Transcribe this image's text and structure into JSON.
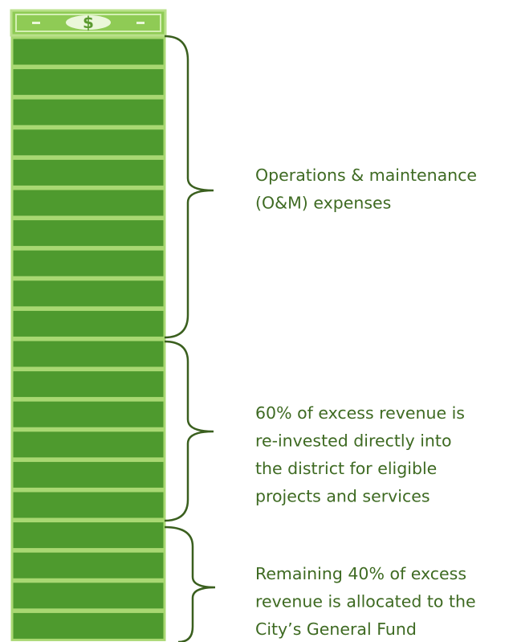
{
  "bill_symbol": "$",
  "segments": [
    {
      "lines": [
        "Operations & maintenance",
        "(O&M) expenses"
      ]
    },
    {
      "lines": [
        "60% of excess revenue is",
        "re-invested directly into",
        "the district for eligible",
        "projects and services"
      ]
    },
    {
      "lines": [
        "Remaining 40% of excess",
        "revenue is allocated to the",
        "City’s General Fund"
      ]
    }
  ]
}
